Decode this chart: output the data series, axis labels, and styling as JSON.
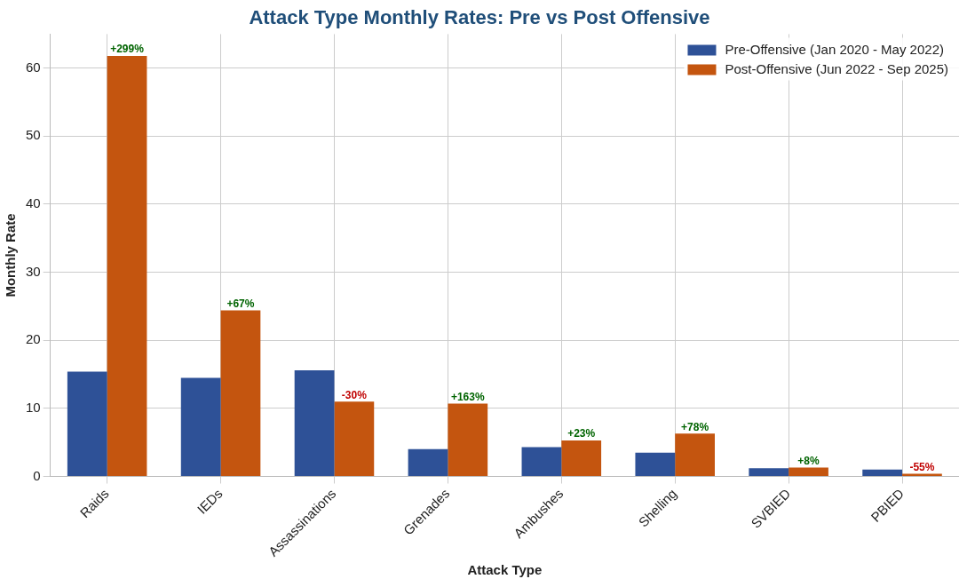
{
  "chart_data": {
    "type": "bar",
    "title": "Attack Type Monthly Rates: Pre vs Post Offensive",
    "xlabel": "Attack Type",
    "ylabel": "Monthly Rate",
    "categories": [
      "Raids",
      "IEDs",
      "Assassinations",
      "Grenades",
      "Ambushes",
      "Shelling",
      "SVBIED",
      "PBIED"
    ],
    "series": [
      {
        "name": "Pre-Offensive (Jan 2020 - May 2022)",
        "color": "#2e5197",
        "values": [
          15.4,
          14.5,
          15.6,
          4.0,
          4.3,
          3.5,
          1.2,
          1.0
        ]
      },
      {
        "name": "Post-Offensive (Jun 2022 - Sep 2025)",
        "color": "#c4550f",
        "values": [
          61.8,
          24.4,
          11.0,
          10.7,
          5.3,
          6.3,
          1.3,
          0.4
        ]
      }
    ],
    "ylim": [
      0,
      65
    ],
    "yticks": [
      0,
      10,
      20,
      30,
      40,
      50,
      60
    ],
    "grid": true,
    "legend": "top right",
    "annotations": [
      {
        "text": "+299%",
        "x": "Raids",
        "y": 61.8
      },
      {
        "text": "+67%",
        "x": "IEDs",
        "y": 24.4
      },
      {
        "text": "-30%",
        "x": "Assassinations",
        "y": 11.0
      },
      {
        "text": "+163%",
        "x": "Grenades",
        "y": 10.7
      },
      {
        "text": "+23%",
        "x": "Ambushes",
        "y": 5.3
      },
      {
        "text": "+78%",
        "x": "Shelling",
        "y": 6.3
      },
      {
        "text": "+8%",
        "x": "SVBIED",
        "y": 1.3
      },
      {
        "text": "-55%",
        "x": "PBIED",
        "y": 0.4
      }
    ]
  }
}
